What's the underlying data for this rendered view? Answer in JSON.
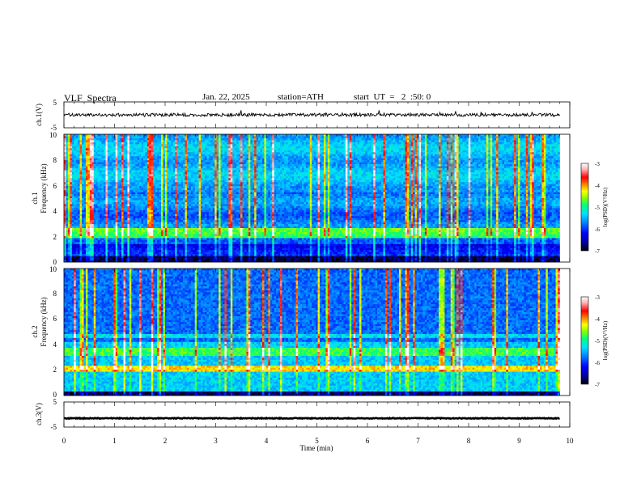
{
  "header": {
    "title": "VLF  Spectra",
    "date": "Jan. 22, 2025",
    "station": "station=ATH",
    "start_ut": "start  UT  =   2  :50: 0"
  },
  "colors": {
    "psd_scale": [
      "#000000",
      "#00008b",
      "#0000ff",
      "#0080ff",
      "#00e0ff",
      "#00ff80",
      "#80ff00",
      "#ffff00",
      "#ff8000",
      "#ff0000",
      "#ffb0b0",
      "#ffffff"
    ]
  },
  "chart_data": [
    {
      "id": "ch1_voltage",
      "type": "line",
      "ylabel": "ch.1(V)",
      "xlim": [
        0,
        10
      ],
      "ylim": [
        -5,
        5
      ],
      "yticks": [
        "5",
        "-5"
      ],
      "x_end": 9.8,
      "mean_value": 0.0,
      "noise_amplitude": 0.6
    },
    {
      "id": "ch1_spectrogram",
      "type": "heatmap",
      "ylabel": "ch.1\nFrequency  (kHz)",
      "xlim": [
        0,
        10
      ],
      "ylim": [
        0,
        10
      ],
      "yticks": [
        "0",
        "2",
        "4",
        "6",
        "8",
        "10"
      ],
      "x_end": 9.8,
      "colorbar": {
        "label": "log(PSD)(V²/Hz)",
        "range": [
          -7,
          -3
        ],
        "ticks": [
          "-3",
          "-4",
          "-5",
          "-6",
          "-7"
        ]
      }
    },
    {
      "id": "ch2_spectrogram",
      "type": "heatmap",
      "ylabel": "ch.2\nFrequency  (kHz)",
      "xlim": [
        0,
        10
      ],
      "ylim": [
        0,
        10
      ],
      "yticks": [
        "0",
        "2",
        "4",
        "6",
        "8",
        "10"
      ],
      "x_end": 9.8,
      "colorbar": {
        "label": "log(PSD)(V²/Hz)",
        "range": [
          -7,
          -3
        ],
        "ticks": [
          "-3",
          "-4",
          "-5",
          "-6",
          "-7"
        ]
      }
    },
    {
      "id": "ch3_voltage",
      "type": "line",
      "ylabel": "ch.3(V)",
      "xlim": [
        0,
        10
      ],
      "ylim": [
        -5,
        5
      ],
      "yticks": [
        "5",
        "-5"
      ],
      "x_end": 9.8,
      "mean_value": -1.5,
      "noise_amplitude": 0.15
    }
  ],
  "x_axis": {
    "label": "Time  (min)",
    "ticks": [
      "0",
      "1",
      "2",
      "3",
      "4",
      "5",
      "6",
      "7",
      "8",
      "9",
      "10"
    ]
  }
}
